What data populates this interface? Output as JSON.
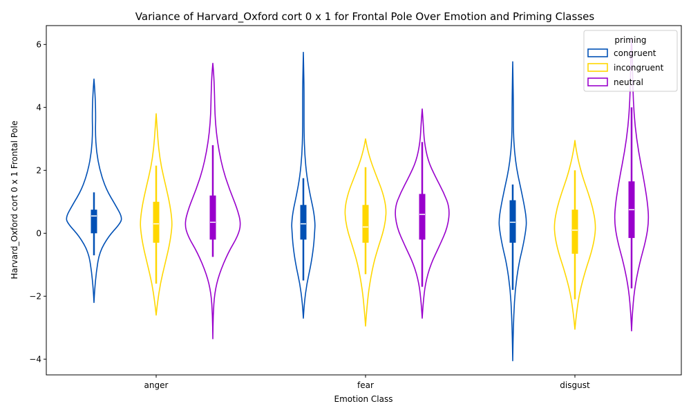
{
  "chart_data": {
    "type": "violin",
    "title": "Variance of Harvard_Oxford cort 0 x 1 for Frontal Pole Over Emotion and Priming Classes",
    "xlabel": "Emotion Class",
    "ylabel": "Harvard_Oxford cort 0 x 1 Frontal Pole",
    "ylim": [
      -4.5,
      6.6
    ],
    "yticks": [
      -4,
      -2,
      0,
      2,
      4,
      6
    ],
    "categories": [
      "anger",
      "fear",
      "disgust"
    ],
    "legend": {
      "title": "priming",
      "placement": "top-right"
    },
    "series": [
      {
        "name": "congruent",
        "color": "#0050b5",
        "groups": [
          {
            "category": "anger",
            "min": -2.2,
            "max": 4.9,
            "q1": 0.0,
            "median": 0.55,
            "q3": 0.75,
            "whisker_low": -0.7,
            "whisker_high": 1.3,
            "profile": [
              [
                -2.2,
                0.0
              ],
              [
                -1.8,
                0.02
              ],
              [
                -1.2,
                0.07
              ],
              [
                -0.6,
                0.16
              ],
              [
                -0.1,
                0.42
              ],
              [
                0.3,
                0.75
              ],
              [
                0.5,
                0.82
              ],
              [
                0.9,
                0.62
              ],
              [
                1.4,
                0.35
              ],
              [
                2.0,
                0.17
              ],
              [
                2.6,
                0.07
              ],
              [
                3.2,
                0.04
              ],
              [
                3.7,
                0.05
              ],
              [
                4.2,
                0.04
              ],
              [
                4.6,
                0.02
              ],
              [
                4.9,
                0.0
              ]
            ]
          },
          {
            "category": "fear",
            "min": -2.7,
            "max": 5.75,
            "q1": -0.2,
            "median": 0.3,
            "q3": 0.9,
            "whisker_low": -1.5,
            "whisker_high": 1.75,
            "profile": [
              [
                -2.7,
                0.0
              ],
              [
                -2.2,
                0.03
              ],
              [
                -1.6,
                0.1
              ],
              [
                -1.0,
                0.22
              ],
              [
                -0.4,
                0.3
              ],
              [
                0.1,
                0.33
              ],
              [
                0.3,
                0.34
              ],
              [
                0.7,
                0.3
              ],
              [
                1.2,
                0.2
              ],
              [
                1.8,
                0.1
              ],
              [
                2.5,
                0.04
              ],
              [
                3.2,
                0.02
              ],
              [
                4.0,
                0.02
              ],
              [
                4.6,
                0.02
              ],
              [
                5.2,
                0.01
              ],
              [
                5.75,
                0.0
              ]
            ]
          },
          {
            "category": "disgust",
            "min": -4.05,
            "max": 5.45,
            "q1": -0.3,
            "median": 0.35,
            "q3": 1.05,
            "whisker_low": -1.8,
            "whisker_high": 1.55,
            "profile": [
              [
                -4.05,
                0.0
              ],
              [
                -3.4,
                0.01
              ],
              [
                -2.6,
                0.03
              ],
              [
                -1.8,
                0.07
              ],
              [
                -1.0,
                0.17
              ],
              [
                -0.4,
                0.3
              ],
              [
                0.1,
                0.38
              ],
              [
                0.4,
                0.4
              ],
              [
                0.8,
                0.35
              ],
              [
                1.4,
                0.24
              ],
              [
                2.0,
                0.12
              ],
              [
                2.6,
                0.05
              ],
              [
                3.2,
                0.02
              ],
              [
                4.0,
                0.02
              ],
              [
                4.8,
                0.01
              ],
              [
                5.45,
                0.0
              ]
            ]
          }
        ]
      },
      {
        "name": "incongruent",
        "color": "#ffd700",
        "groups": [
          {
            "category": "anger",
            "min": -2.6,
            "max": 3.8,
            "q1": -0.3,
            "median": 0.3,
            "q3": 1.0,
            "whisker_low": -1.6,
            "whisker_high": 2.15,
            "profile": [
              [
                -2.6,
                0.0
              ],
              [
                -2.2,
                0.04
              ],
              [
                -1.6,
                0.12
              ],
              [
                -1.0,
                0.25
              ],
              [
                -0.4,
                0.38
              ],
              [
                0.1,
                0.45
              ],
              [
                0.4,
                0.46
              ],
              [
                0.9,
                0.4
              ],
              [
                1.5,
                0.28
              ],
              [
                2.1,
                0.15
              ],
              [
                2.7,
                0.07
              ],
              [
                3.3,
                0.03
              ],
              [
                3.8,
                0.0
              ]
            ]
          },
          {
            "category": "fear",
            "min": -2.95,
            "max": 3.0,
            "q1": -0.3,
            "median": 0.2,
            "q3": 0.9,
            "whisker_low": -1.3,
            "whisker_high": 2.1,
            "profile": [
              [
                -2.95,
                0.0
              ],
              [
                -2.5,
                0.03
              ],
              [
                -1.8,
                0.09
              ],
              [
                -1.0,
                0.22
              ],
              [
                -0.4,
                0.38
              ],
              [
                0.0,
                0.5
              ],
              [
                0.4,
                0.58
              ],
              [
                0.8,
                0.6
              ],
              [
                1.3,
                0.5
              ],
              [
                1.8,
                0.32
              ],
              [
                2.3,
                0.15
              ],
              [
                2.7,
                0.05
              ],
              [
                3.0,
                0.0
              ]
            ]
          },
          {
            "category": "disgust",
            "min": -3.05,
            "max": 2.95,
            "q1": -0.65,
            "median": 0.1,
            "q3": 0.75,
            "whisker_low": -2.1,
            "whisker_high": 2.0,
            "profile": [
              [
                -3.05,
                0.0
              ],
              [
                -2.6,
                0.04
              ],
              [
                -1.9,
                0.13
              ],
              [
                -1.2,
                0.3
              ],
              [
                -0.6,
                0.48
              ],
              [
                -0.1,
                0.58
              ],
              [
                0.3,
                0.6
              ],
              [
                0.8,
                0.52
              ],
              [
                1.3,
                0.38
              ],
              [
                1.8,
                0.22
              ],
              [
                2.3,
                0.1
              ],
              [
                2.7,
                0.03
              ],
              [
                2.95,
                0.0
              ]
            ]
          }
        ]
      },
      {
        "name": "neutral",
        "color": "#9900cc",
        "groups": [
          {
            "category": "anger",
            "min": -3.35,
            "max": 5.4,
            "q1": -0.2,
            "median": 0.35,
            "q3": 1.2,
            "whisker_low": -0.75,
            "whisker_high": 2.8,
            "profile": [
              [
                -3.35,
                0.0
              ],
              [
                -2.6,
                0.01
              ],
              [
                -1.9,
                0.05
              ],
              [
                -1.3,
                0.18
              ],
              [
                -0.6,
                0.45
              ],
              [
                -0.1,
                0.72
              ],
              [
                0.3,
                0.82
              ],
              [
                0.8,
                0.7
              ],
              [
                1.4,
                0.48
              ],
              [
                2.0,
                0.3
              ],
              [
                2.6,
                0.18
              ],
              [
                3.2,
                0.1
              ],
              [
                3.8,
                0.06
              ],
              [
                4.4,
                0.05
              ],
              [
                5.0,
                0.03
              ],
              [
                5.4,
                0.0
              ]
            ]
          },
          {
            "category": "fear",
            "min": -2.7,
            "max": 3.95,
            "q1": -0.2,
            "median": 0.6,
            "q3": 1.25,
            "whisker_low": -1.7,
            "whisker_high": 2.9,
            "profile": [
              [
                -2.7,
                0.0
              ],
              [
                -2.2,
                0.03
              ],
              [
                -1.6,
                0.09
              ],
              [
                -1.0,
                0.24
              ],
              [
                -0.4,
                0.5
              ],
              [
                0.2,
                0.74
              ],
              [
                0.8,
                0.8
              ],
              [
                1.3,
                0.62
              ],
              [
                1.8,
                0.38
              ],
              [
                2.3,
                0.17
              ],
              [
                2.9,
                0.06
              ],
              [
                3.5,
                0.03
              ],
              [
                3.95,
                0.0
              ]
            ]
          },
          {
            "category": "disgust",
            "min": -3.1,
            "max": 6.2,
            "q1": -0.15,
            "median": 0.75,
            "q3": 1.65,
            "whisker_low": -1.75,
            "whisker_high": 4.0,
            "profile": [
              [
                -3.1,
                0.0
              ],
              [
                -2.6,
                0.02
              ],
              [
                -1.8,
                0.08
              ],
              [
                -1.0,
                0.22
              ],
              [
                -0.2,
                0.42
              ],
              [
                0.4,
                0.5
              ],
              [
                1.0,
                0.46
              ],
              [
                1.8,
                0.34
              ],
              [
                2.6,
                0.2
              ],
              [
                3.4,
                0.1
              ],
              [
                4.2,
                0.05
              ],
              [
                5.0,
                0.03
              ],
              [
                5.7,
                0.02
              ],
              [
                6.2,
                0.0
              ]
            ]
          }
        ]
      }
    ]
  }
}
